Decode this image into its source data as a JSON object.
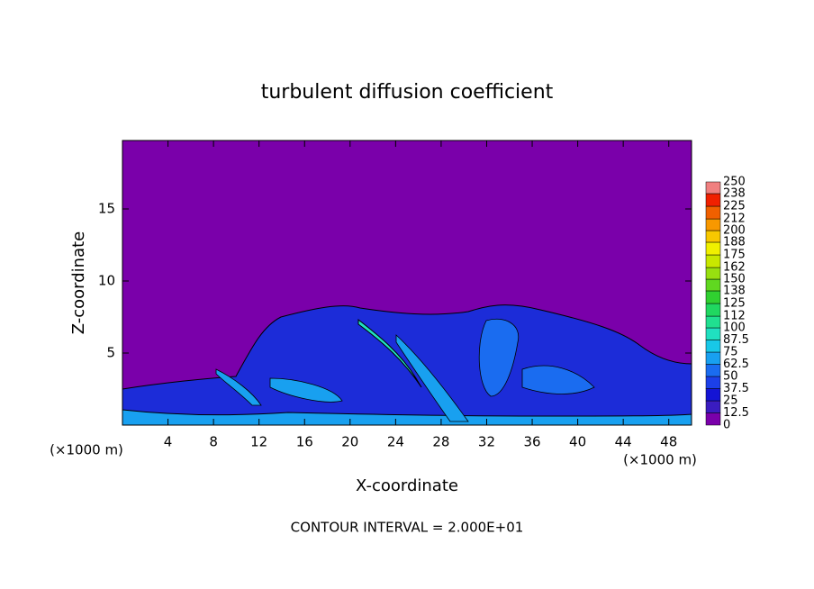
{
  "chart_data": {
    "type": "contour",
    "title": "turbulent diffusion coefficient",
    "xlabel": "X-coordinate",
    "ylabel": "Z-coordinate",
    "x_unit": "(×1000 m)",
    "y_unit": "(×1000 m)",
    "footer": "CONTOUR INTERVAL = 2.000E+01",
    "xlim": [
      0,
      50
    ],
    "ylim": [
      0,
      19.75
    ],
    "xticks": [
      4,
      8,
      12,
      16,
      20,
      24,
      28,
      32,
      36,
      40,
      44,
      48
    ],
    "yticks": [
      5,
      10,
      15
    ],
    "colorbar": {
      "levels": [
        0,
        12.5,
        25,
        37.5,
        50,
        62.5,
        75,
        87.5,
        100,
        112,
        125,
        138,
        150,
        162,
        175,
        188,
        200,
        212,
        225,
        238,
        250
      ],
      "colors": [
        "#7a00aa",
        "#3a1cc0",
        "#1414d4",
        "#1c40e8",
        "#1a6cf0",
        "#18a0f0",
        "#18c8e8",
        "#20e0c0",
        "#20e090",
        "#20d860",
        "#30d030",
        "#60d820",
        "#98e010",
        "#c8e800",
        "#f0f000",
        "#f8c800",
        "#f89800",
        "#f06000",
        "#f02000",
        "#f08080"
      ]
    }
  }
}
